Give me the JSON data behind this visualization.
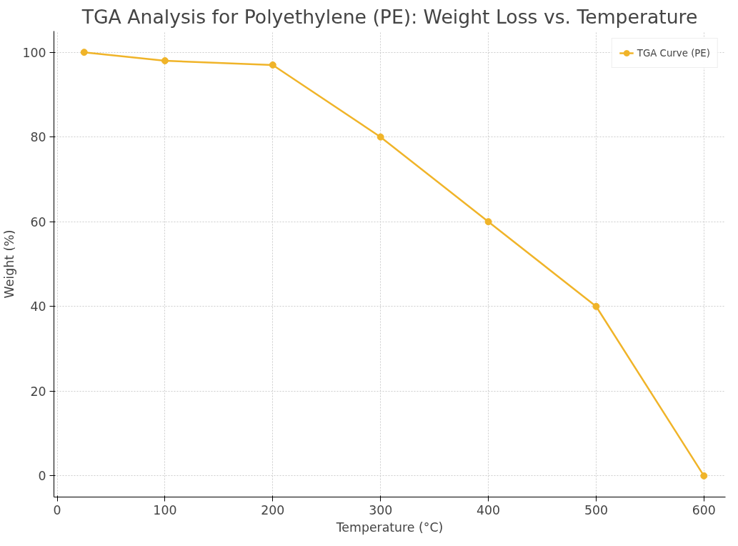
{
  "chart_data": {
    "type": "line",
    "title": "TGA Analysis for Polyethylene (PE): Weight Loss vs. Temperature",
    "xlabel": "Temperature (°C)",
    "ylabel": "Weight (%)",
    "x": [
      25,
      100,
      200,
      300,
      400,
      500,
      600
    ],
    "series": [
      {
        "name": "TGA Curve (PE)",
        "color": "#f0b429",
        "values": [
          100,
          98,
          97,
          80,
          60,
          40,
          0
        ]
      }
    ],
    "xlim": [
      -3,
      620
    ],
    "xticks": [
      0,
      100,
      200,
      300,
      400,
      500,
      600
    ],
    "ylim": [
      -5,
      105
    ],
    "yticks": [
      0,
      20,
      40,
      60,
      80,
      100
    ],
    "grid": true,
    "legend": "top right",
    "marker": "circle",
    "line_style": "solid"
  }
}
